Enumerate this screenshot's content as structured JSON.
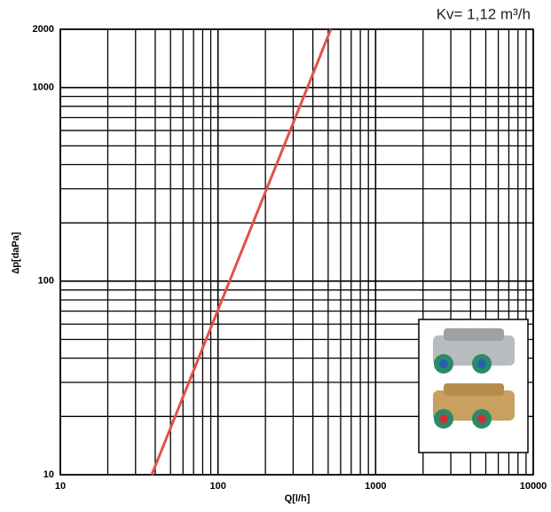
{
  "chart_data": {
    "type": "line",
    "title": "Kv= 1,12 m³/h",
    "x_label": "Q[l/h]",
    "y_label": "∆p[daPa]",
    "x": [
      38,
      520
    ],
    "values": [
      10,
      2000
    ],
    "color": "#e0524a",
    "xlim": [
      10,
      10000
    ],
    "ylim": [
      10,
      2000
    ],
    "xticks": [
      10,
      100,
      1000,
      10000
    ],
    "yticks": [
      10,
      100,
      1000,
      2000
    ],
    "xscale": "log",
    "yscale": "log",
    "grid": true
  }
}
